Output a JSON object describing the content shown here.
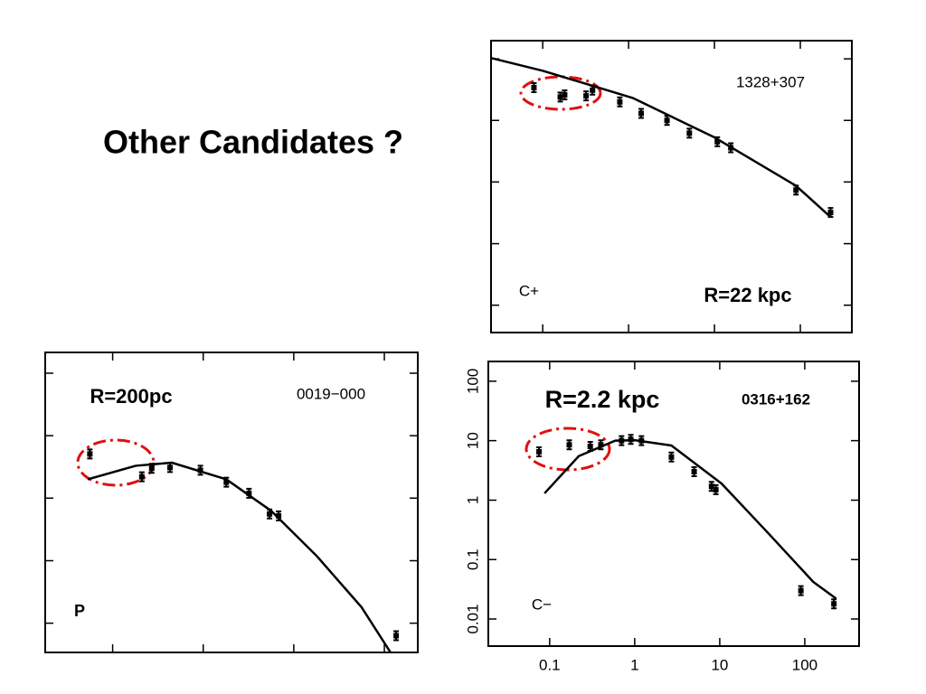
{
  "slide": {
    "title": "Other Candidates ?"
  },
  "chart_data": [
    {
      "type": "scatter",
      "log_x": true,
      "log_y": true,
      "tick_labels": false,
      "xlim": [
        0.025,
        398
      ],
      "ylim": [
        0.0036,
        197
      ],
      "xticks": [
        0.1,
        1,
        10,
        100
      ],
      "yticks": [
        0.01,
        0.1,
        1,
        10,
        100
      ],
      "annotations": [
        "1328+307",
        "C+",
        "R=22 kpc"
      ],
      "series": [
        {
          "style": "markers",
          "color": "#000000",
          "x": [
            0.079,
            0.16,
            0.18,
            0.32,
            0.38,
            0.79,
            1.4,
            2.8,
            5.1,
            10.8,
            15.5,
            89,
            225
          ],
          "values": [
            34,
            24,
            26,
            25,
            31,
            20,
            13,
            10,
            6.2,
            4.5,
            3.6,
            0.74,
            0.32
          ]
        },
        {
          "style": "line",
          "color": "#000000",
          "x": [
            0.025,
            0.1,
            1.13,
            10,
            89,
            225
          ],
          "values": [
            103,
            64,
            23,
            5.3,
            0.87,
            0.27
          ]
        }
      ]
    },
    {
      "type": "scatter",
      "log_x": true,
      "log_y": true,
      "tick_labels": false,
      "xlim": [
        0.018,
        234
      ],
      "ylim": [
        0.0034,
        215
      ],
      "xticks": [
        0.1,
        1,
        10,
        100
      ],
      "yticks": [
        0.01,
        0.1,
        1,
        10,
        100
      ],
      "annotations": [
        "R=200pc",
        "0019−000",
        "P"
      ],
      "series": [
        {
          "style": "markers",
          "color": "#000000",
          "x": [
            0.056,
            0.21,
            0.27,
            0.43,
            0.93,
            1.8,
            3.2,
            5.4,
            6.8,
            135
          ],
          "values": [
            5.1,
            2.2,
            3.0,
            3.1,
            2.8,
            1.8,
            1.2,
            0.56,
            0.52,
            0.0063
          ]
        },
        {
          "style": "line",
          "color": "#000000",
          "x": [
            0.053,
            0.18,
            0.45,
            1.8,
            5.6,
            17.8,
            56,
            117
          ],
          "values": [
            2.0,
            3.3,
            3.7,
            2.0,
            0.63,
            0.12,
            0.018,
            0.0034
          ]
        }
      ]
    },
    {
      "type": "scatter",
      "log_x": true,
      "log_y": true,
      "tick_labels": true,
      "xlim": [
        0.019,
        435
      ],
      "ylim": [
        0.0035,
        215
      ],
      "xticks": [
        0.1,
        1,
        10,
        100
      ],
      "yticks": [
        0.01,
        0.1,
        1,
        10,
        100
      ],
      "annotations": [
        "R=2.2 kpc",
        "0316+162",
        "C−"
      ],
      "series": [
        {
          "style": "markers",
          "color": "#000000",
          "x": [
            0.075,
            0.17,
            0.3,
            0.4,
            0.7,
            0.9,
            1.2,
            2.7,
            5,
            8,
            9,
            90,
            220
          ],
          "values": [
            6.5,
            8.5,
            8,
            8.5,
            10,
            10.5,
            10,
            5.3,
            3,
            1.7,
            1.5,
            0.03,
            0.018
          ]
        },
        {
          "style": "line",
          "color": "#000000",
          "x": [
            0.087,
            0.22,
            0.59,
            1,
            2.7,
            10.5,
            37,
            126,
            234
          ],
          "values": [
            1.3,
            5.5,
            10,
            10.2,
            8.3,
            1.9,
            0.28,
            0.042,
            0.022
          ]
        }
      ]
    }
  ]
}
